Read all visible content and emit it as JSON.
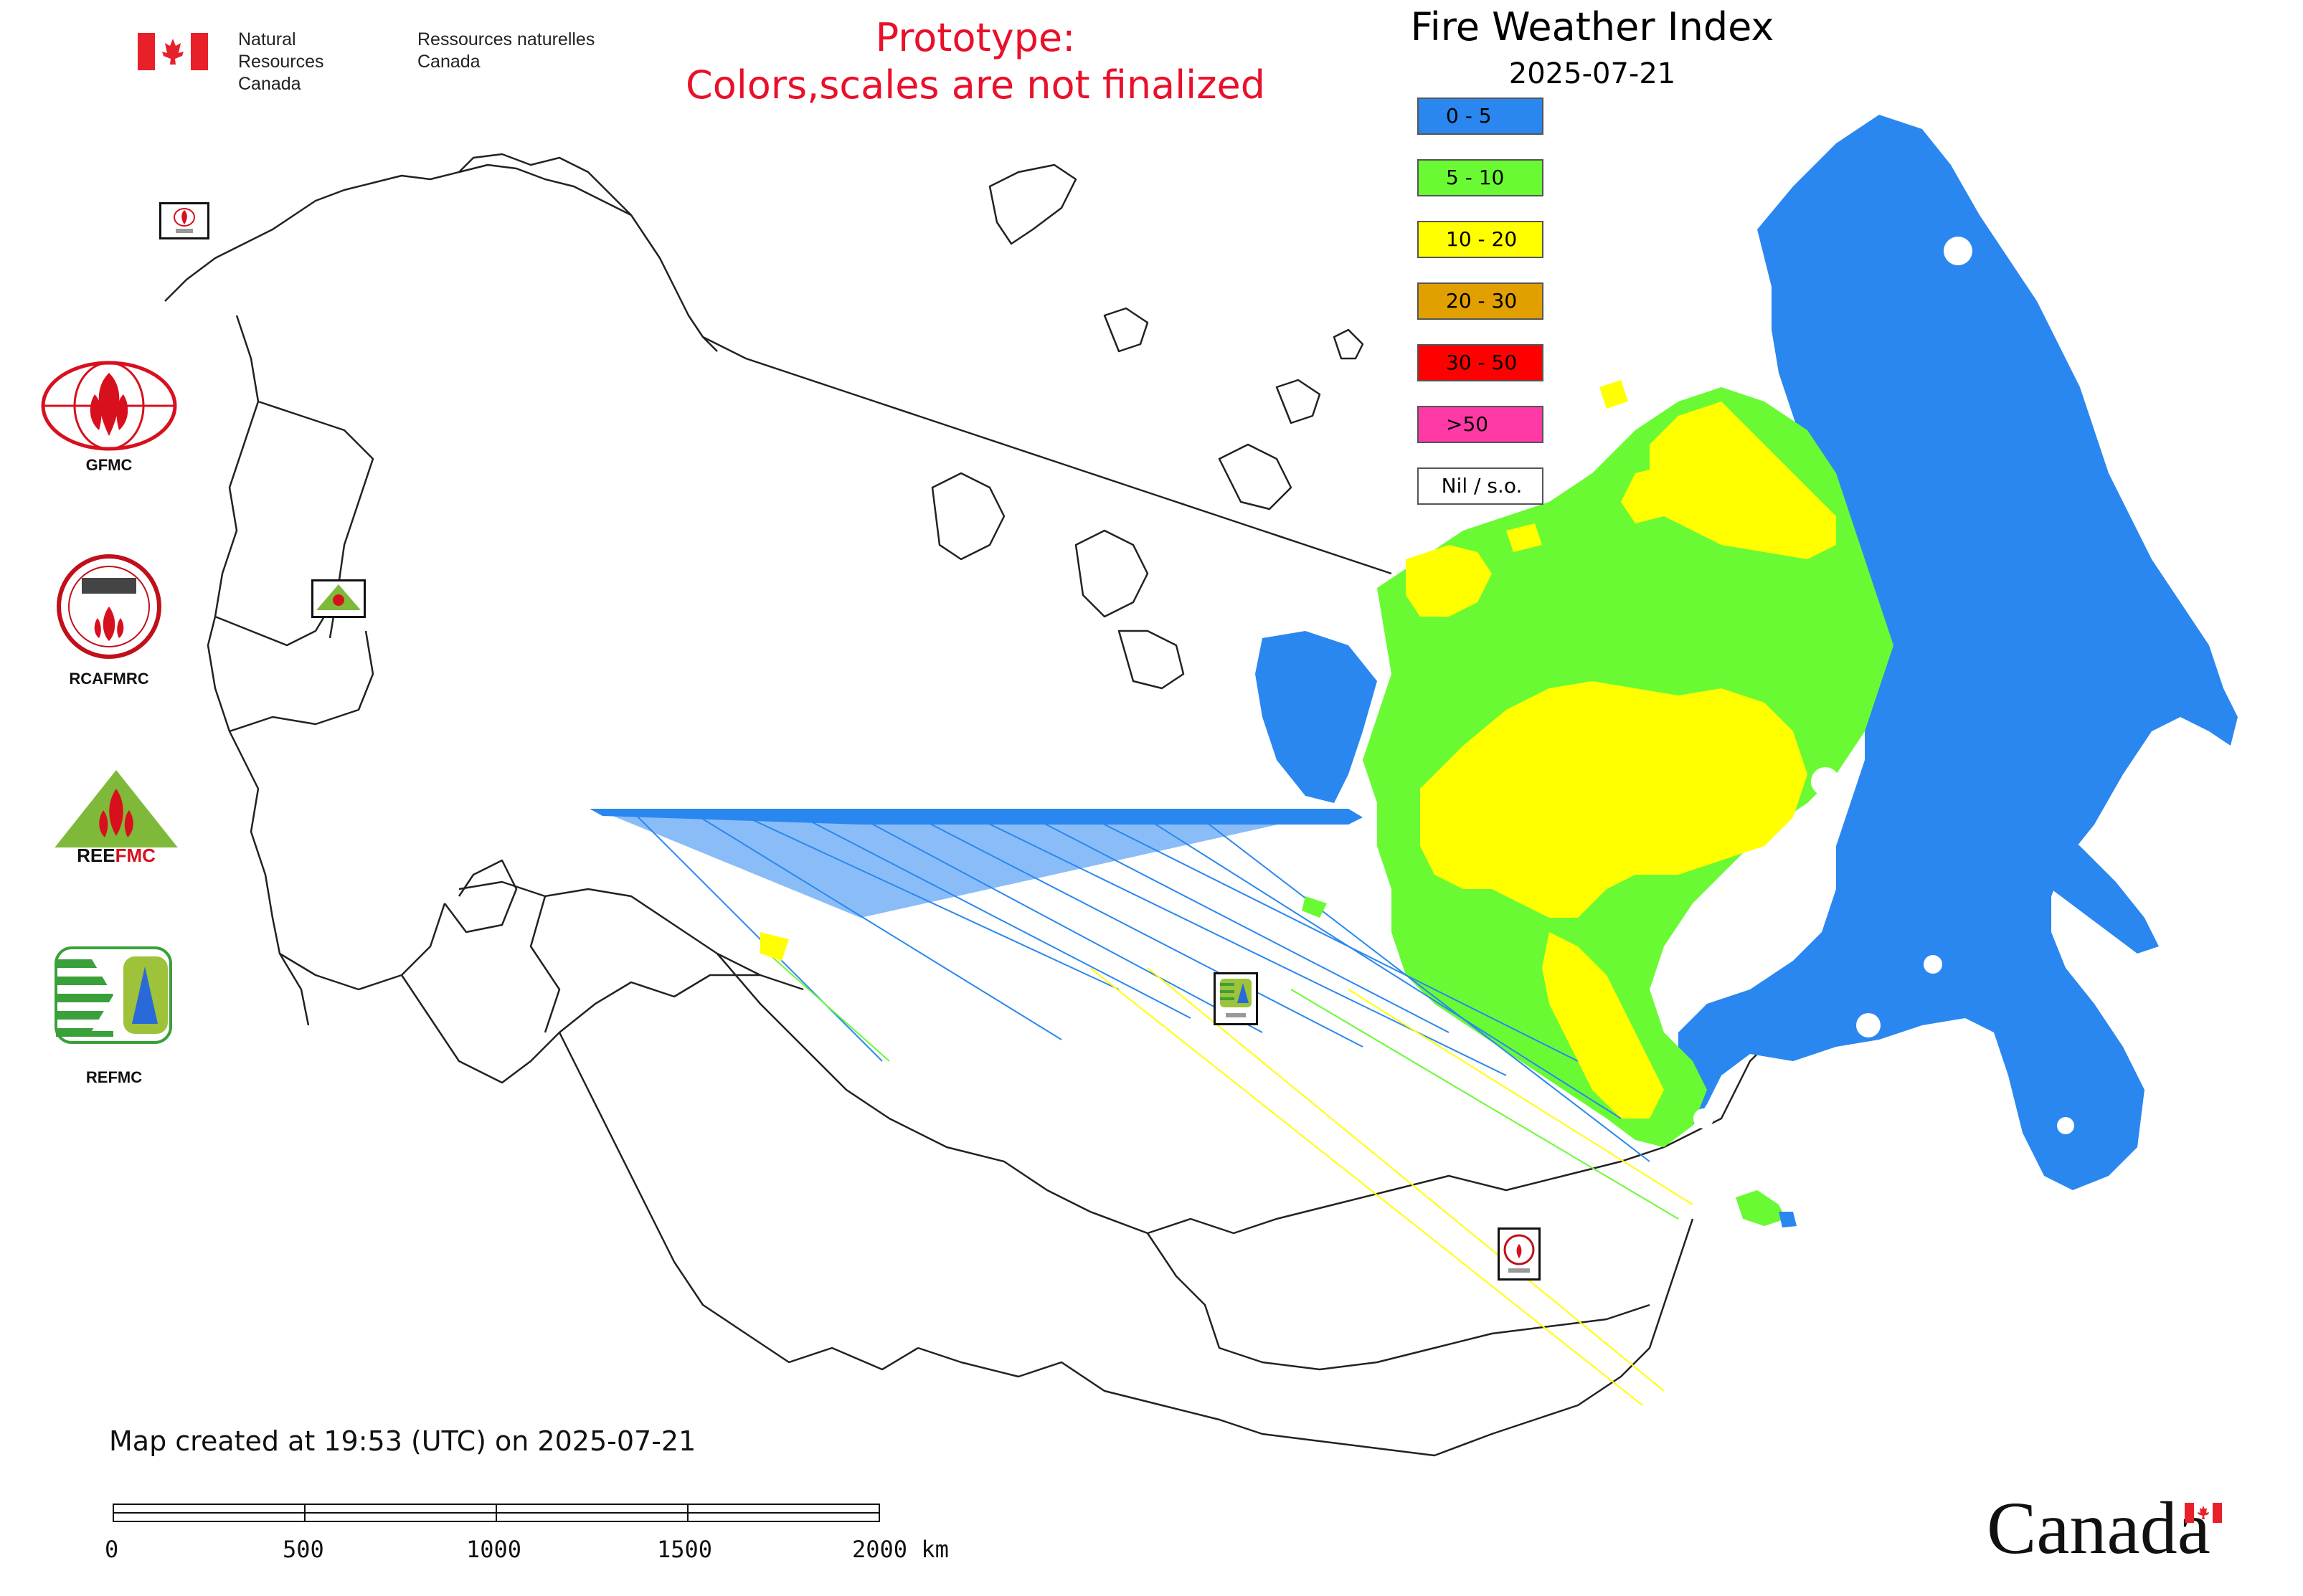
{
  "header": {
    "org_en_line1": "Natural Resources",
    "org_en_line2": "Canada",
    "org_fr_line1": "Ressources naturelles",
    "org_fr_line2": "Canada",
    "prototype_line1": "Prototype:",
    "prototype_line2": "Colors,scales are not finalized"
  },
  "map": {
    "title": "Fire Weather Index",
    "date": "2025-07-21"
  },
  "legend": [
    {
      "label": "0 - 5",
      "color": "#2a87f0"
    },
    {
      "label": "5 - 10",
      "color": "#6afa34"
    },
    {
      "label": "10 - 20",
      "color": "#ffff00"
    },
    {
      "label": "20 - 30",
      "color": "#e2a000"
    },
    {
      "label": "30 - 50",
      "color": "#ff0000"
    },
    {
      "label": ">50",
      "color": "#ff3aa6"
    },
    {
      "label": "Nil / s.o.",
      "color": "#ffffff"
    }
  ],
  "logos": [
    {
      "label": "GFMC",
      "icon": "gfmc-logo-icon"
    },
    {
      "label": "RCAFMRC",
      "icon": "rcafmrc-logo-icon"
    },
    {
      "label": "REEFMC",
      "icon": "reefmc-logo-icon"
    },
    {
      "label": "REFMC",
      "icon": "refmc-logo-icon"
    }
  ],
  "footer": {
    "created_text": "Map created at 19:53 (UTC) on 2025-07-21"
  },
  "scale_bar": {
    "labels": [
      "0",
      "500",
      "1000",
      "1500",
      "2000 km"
    ]
  },
  "wordmark": "Canada",
  "colors": {
    "prototype_red": "#e8102a",
    "flag_red": "#e8202a",
    "boundary": "#222222"
  }
}
